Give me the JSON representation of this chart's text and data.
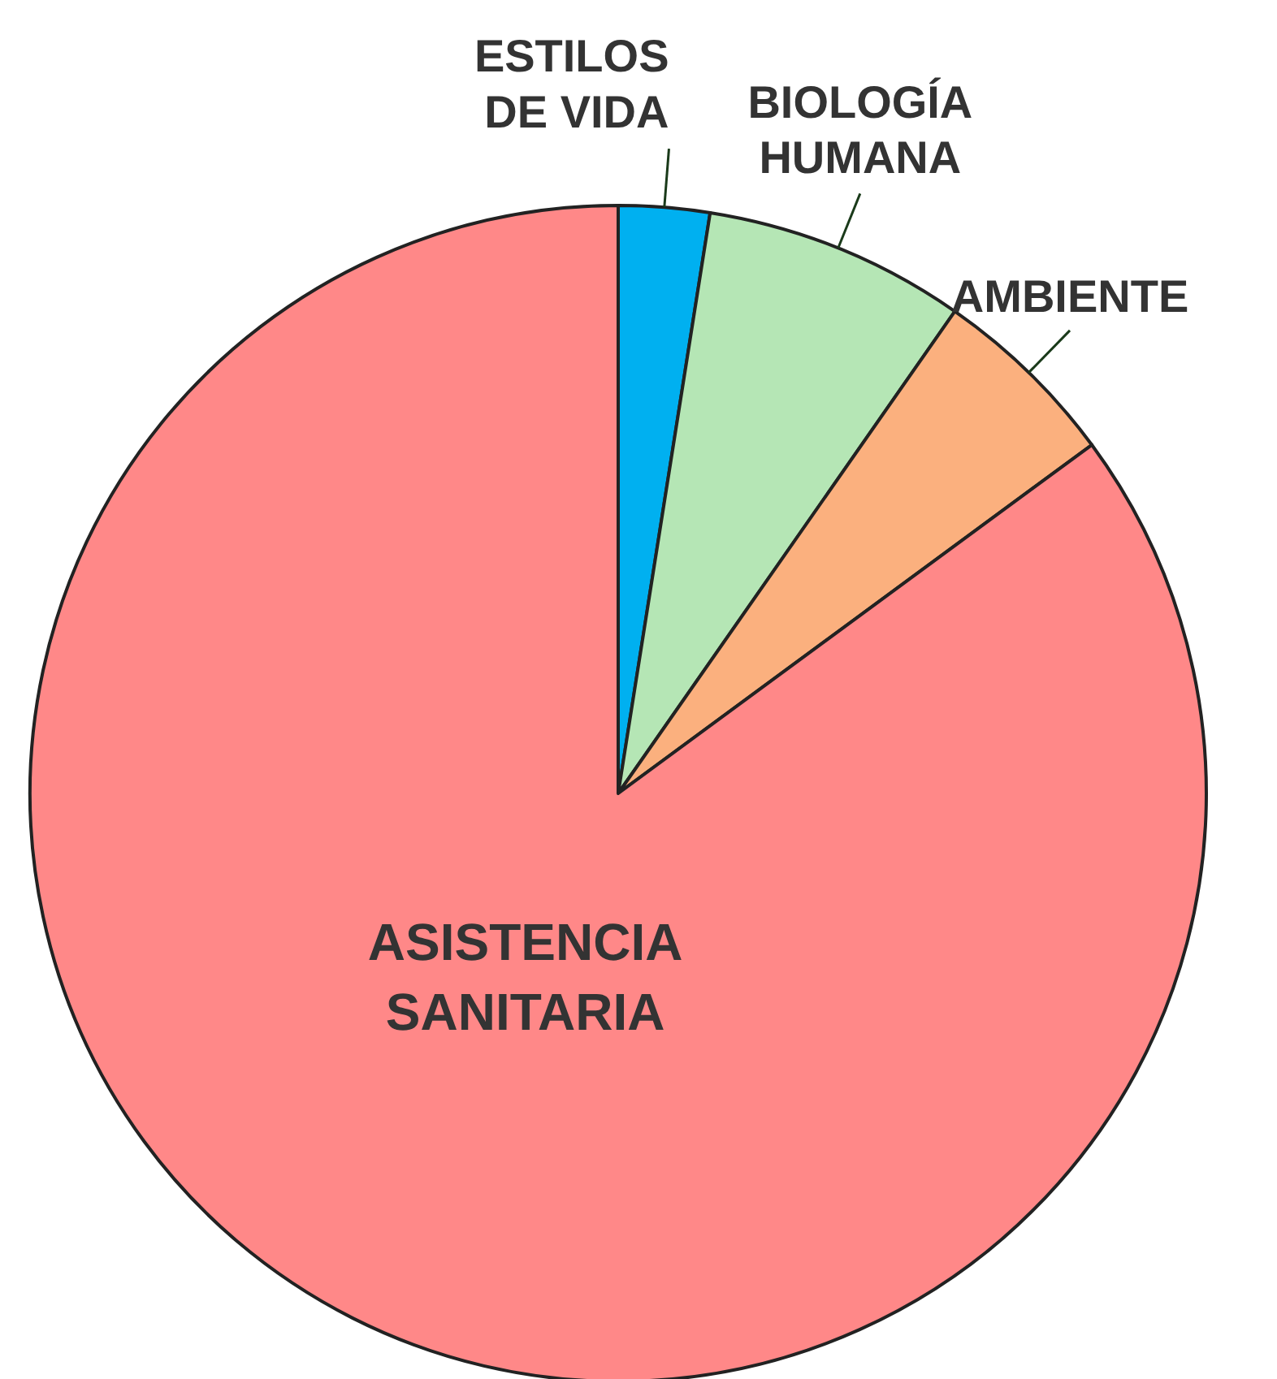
{
  "chart_data": {
    "type": "pie",
    "categories": [
      "ESTILOS DE VIDA",
      "BIOLOGÍA HUMANA",
      "AMBIENTE",
      "ASISTENCIA SANITARIA"
    ],
    "values": [
      2.5,
      7.2,
      5.2,
      85.1
    ],
    "colors": [
      "#00b0f0",
      "#b5e6b5",
      "#fbb07e",
      "#ff8888"
    ],
    "legend": false
  }
}
